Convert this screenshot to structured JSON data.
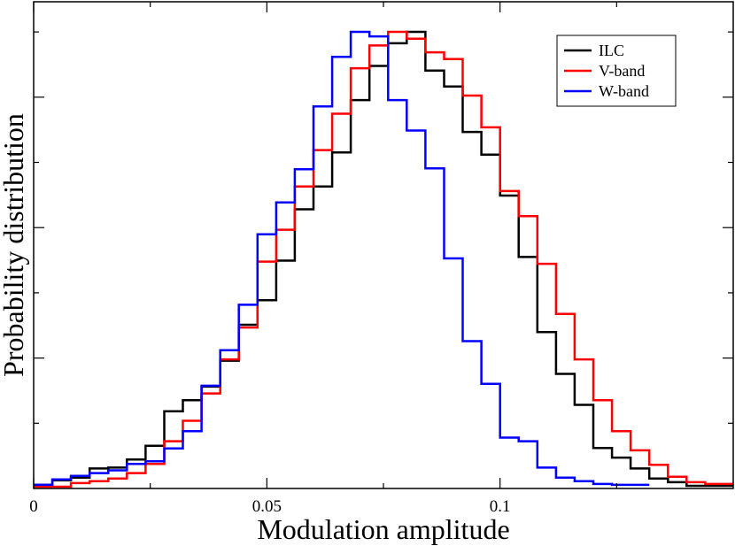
{
  "chart_data": {
    "type": "histogram-step",
    "title": "",
    "xlabel": "Modulation amplitude",
    "ylabel": "Probability distribution",
    "xlim": [
      0,
      0.15
    ],
    "ylim": [
      0,
      1.0
    ],
    "x_ticks": [
      {
        "value": 0,
        "label": "0"
      },
      {
        "value": 0.05,
        "label": "0.05"
      },
      {
        "value": 0.1,
        "label": "0.1"
      }
    ],
    "x_minor_step": 0.025,
    "y_major_ticks": [
      0.268,
      0.536,
      0.804
    ],
    "y_minor_ticks": [
      0.134,
      0.402,
      0.67,
      0.938
    ],
    "bin_width": 0.004,
    "bin_edges_start": 0,
    "legend_position": "top-right",
    "series": [
      {
        "name": "ILC",
        "color": "#000000",
        "values": [
          0.004,
          0.014,
          0.02,
          0.04,
          0.042,
          0.06,
          0.09,
          0.166,
          0.19,
          0.22,
          0.277,
          0.356,
          0.41,
          0.497,
          0.61,
          0.66,
          0.735,
          0.85,
          0.925,
          0.975,
          1.0,
          0.915,
          0.88,
          0.78,
          0.73,
          0.64,
          0.505,
          0.34,
          0.248,
          0.18,
          0.085,
          0.064,
          0.04,
          0.018,
          0.01,
          0.002,
          0.002,
          0.002
        ]
      },
      {
        "name": "V-band",
        "color": "#ff0000",
        "values": [
          0.0,
          0.0,
          0.008,
          0.012,
          0.018,
          0.03,
          0.05,
          0.1,
          0.145,
          0.205,
          0.28,
          0.35,
          0.495,
          0.565,
          0.66,
          0.74,
          0.82,
          0.92,
          0.97,
          1.0,
          0.985,
          0.955,
          0.94,
          0.86,
          0.79,
          0.65,
          0.595,
          0.49,
          0.38,
          0.28,
          0.19,
          0.122,
          0.08,
          0.048,
          0.022,
          0.01,
          0.006,
          0.006
        ]
      },
      {
        "name": "W-band",
        "color": "#0000ff",
        "values": [
          0.004,
          0.016,
          0.024,
          0.03,
          0.036,
          0.05,
          0.056,
          0.084,
          0.122,
          0.222,
          0.3,
          0.4,
          0.555,
          0.625,
          0.698,
          0.836,
          0.945,
          1.0,
          0.99,
          0.85,
          0.783,
          0.7,
          0.502,
          0.32,
          0.226,
          0.108,
          0.1,
          0.042,
          0.02,
          0.012,
          0.006,
          0.004,
          0.004
        ]
      }
    ]
  }
}
